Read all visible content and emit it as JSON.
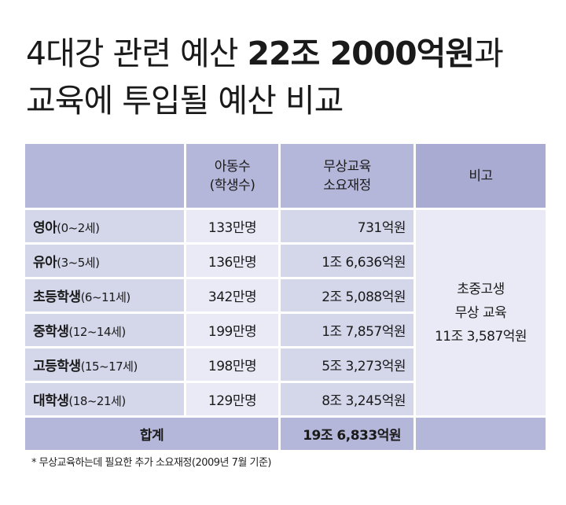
{
  "title": {
    "line1_prefix": "4대강 관련 예산 ",
    "line1_amount": "22조 2000억원",
    "line1_suffix": "과",
    "line2": "교육에 투입될 예산 비교"
  },
  "table": {
    "headers": {
      "students_line1": "아동수",
      "students_line2": "(학생수)",
      "cost_line1": "무상교육",
      "cost_line2": "소요재정",
      "note": "비고"
    },
    "rows": [
      {
        "name": "영아",
        "age": "(0~2세)",
        "count": "133만명",
        "cost": "731억원"
      },
      {
        "name": "유아",
        "age": "(3~5세)",
        "count": "136만명",
        "cost": "1조 6,636억원"
      },
      {
        "name": "초등학생",
        "age": "(6~11세)",
        "count": "342만명",
        "cost": "2조 5,088억원"
      },
      {
        "name": "중학생",
        "age": "(12~14세)",
        "count": "199만명",
        "cost": "1조 7,857억원"
      },
      {
        "name": "고등학생",
        "age": "(15~17세)",
        "count": "198만명",
        "cost": "5조 3,273억원"
      },
      {
        "name": "대학생",
        "age": "(18~21세)",
        "count": "129만명",
        "cost": "8조 3,245억원"
      }
    ],
    "note": {
      "line1": "초중고생",
      "line2": "무상 교육",
      "line3": "11조 3,587억원"
    },
    "total": {
      "label": "합계",
      "cost": "19조 6,833억원"
    }
  },
  "footnote": "* 무상교육하는데 필요한 추가 소요재정(2009년 7월 기준)"
}
